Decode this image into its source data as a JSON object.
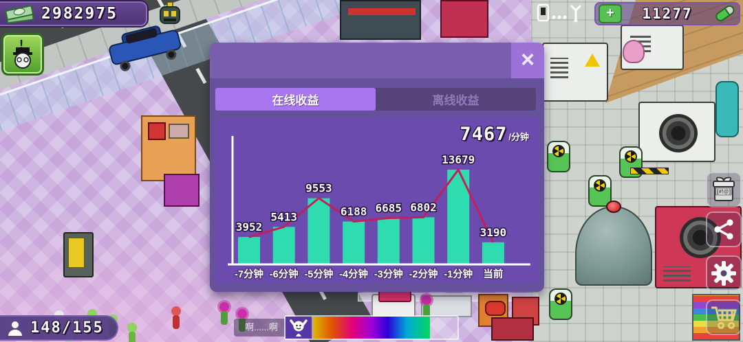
{
  "hud": {
    "money": {
      "value": "2982975"
    },
    "research": {
      "value": "11277",
      "plus_label": "+"
    },
    "population": {
      "value": "148/155"
    },
    "npc_speech": "啊......啊",
    "quest_alert": "!",
    "gift_tag": "[#!@]"
  },
  "modal": {
    "close_label": "×",
    "tabs": [
      {
        "label": "在线收益"
      },
      {
        "label": "离线收益"
      }
    ],
    "rate_value": "7467",
    "rate_unit": "/分钟"
  },
  "chart_data": {
    "type": "bar",
    "title": "",
    "xlabel": "",
    "ylabel": "",
    "categories": [
      "-7分钟",
      "-6分钟",
      "-5分钟",
      "-4分钟",
      "-3分钟",
      "-2分钟",
      "-1分钟",
      "当前"
    ],
    "values": [
      3952,
      5413,
      9553,
      6188,
      6685,
      6802,
      13679,
      3190
    ],
    "overlay_line": true,
    "bar_color": "#2fdcb0",
    "line_color": "#c2205a",
    "axis_color": "#ffffff",
    "label_color": "#ffffff",
    "ylim": [
      0,
      14500
    ],
    "grid": false,
    "legend_position": "none",
    "current_rate": 7467,
    "rate_unit": "/分钟"
  },
  "colors": {
    "modal_bg": "#65519c",
    "modal_header": "#7a5fae",
    "tab_active": "#a877f0",
    "tab_inactive_bg": "#55437a",
    "chart_panel": "#6b4bae",
    "hud_badge": "#4f3574",
    "accent_green": "#57c057"
  }
}
